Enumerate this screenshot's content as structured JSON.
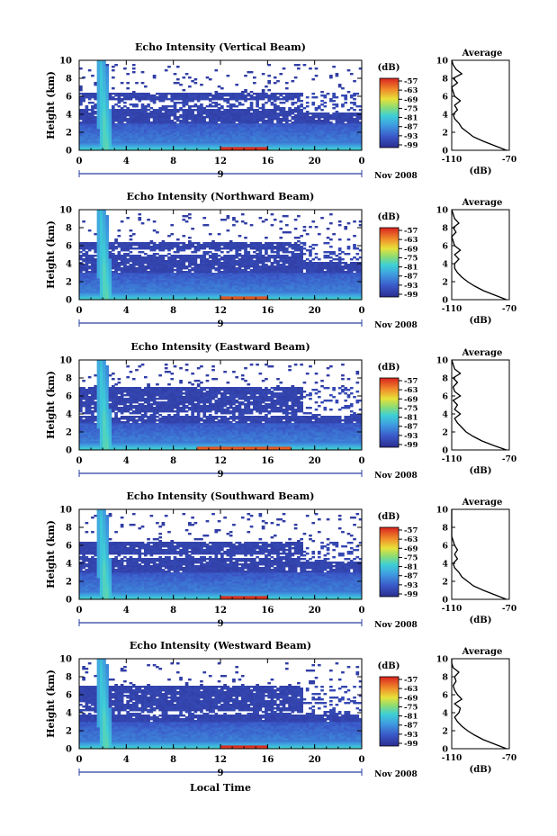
{
  "common": {
    "ylabel": "Height (km)",
    "colorbar_unit": "(dB)",
    "colorbar_ticks": [
      "-57",
      "-63",
      "-69",
      "-75",
      "-81",
      "-87",
      "-93",
      "-99"
    ],
    "x_ticks": [
      "0",
      "4",
      "8",
      "12",
      "16",
      "20",
      "0"
    ],
    "y_ticks": [
      "0",
      "2",
      "4",
      "6",
      "8",
      "10"
    ],
    "date_tick": "9",
    "month_year": "Nov 2008",
    "avg_title": "Average",
    "avg_xlabel": "(dB)",
    "avg_x_ticks": [
      "-110",
      "-70"
    ],
    "xlabel_bottom": "Local Time"
  },
  "chart_data": [
    {
      "type": "heatmap",
      "title": "Echo Intensity (Vertical Beam)",
      "xlabel": "",
      "ylabel": "Height (km)",
      "xlim": [
        0,
        24
      ],
      "ylim": [
        0,
        10
      ],
      "clim": [
        -102,
        -54
      ],
      "color_unit": "dB",
      "features": {
        "upper_cloud_top_km": 6.5,
        "upper_gap_km": [
          4.6,
          5.6
        ],
        "surface_peak_dB": -57,
        "surface_peak_hours": [
          12,
          16
        ],
        "fall_streak_hours": [
          1.5,
          3
        ]
      },
      "average_profile": {
        "height_km": [
          0,
          0.5,
          1,
          1.5,
          2,
          2.5,
          3,
          3.5,
          4,
          4.5,
          5,
          5.5,
          6,
          6.5,
          7,
          7.5,
          8,
          8.5,
          9,
          9.5,
          10
        ],
        "dB": [
          -72,
          -80,
          -88,
          -95,
          -99,
          -103,
          -105,
          -108,
          -109,
          -106,
          -108,
          -104,
          -108,
          -109,
          -110,
          -106,
          -109,
          -103,
          -107,
          -109,
          -110
        ]
      }
    },
    {
      "type": "heatmap",
      "title": "Echo Intensity (Northward Beam)",
      "xlabel": "",
      "ylabel": "Height (km)",
      "xlim": [
        0,
        24
      ],
      "ylim": [
        0,
        10
      ],
      "clim": [
        -102,
        -54
      ],
      "color_unit": "dB",
      "features": {
        "upper_cloud_top_km": 6.4,
        "upper_gap_km": [
          5.0,
          5.6
        ],
        "surface_peak_dB": -60,
        "surface_peak_hours": [
          12,
          16
        ],
        "fall_streak_hours": [
          1.5,
          3
        ]
      },
      "average_profile": {
        "height_km": [
          0,
          0.5,
          1,
          1.5,
          2,
          2.5,
          3,
          3.5,
          4,
          4.5,
          5,
          5.5,
          6,
          6.5,
          7,
          7.5,
          8,
          8.5,
          9,
          9.5,
          10
        ],
        "dB": [
          -72,
          -80,
          -88,
          -94,
          -99,
          -103,
          -106,
          -108,
          -108,
          -105,
          -108,
          -104,
          -108,
          -109,
          -110,
          -107,
          -109,
          -105,
          -108,
          -109,
          -110
        ]
      }
    },
    {
      "type": "heatmap",
      "title": "Echo Intensity (Eastward Beam)",
      "xlabel": "",
      "ylabel": "Height (km)",
      "xlim": [
        0,
        24
      ],
      "ylim": [
        0,
        10
      ],
      "clim": [
        -102,
        -54
      ],
      "color_unit": "dB",
      "features": {
        "upper_cloud_top_km": 7.0,
        "upper_gap_km": [
          3.9,
          4.3
        ],
        "surface_peak_dB": -60,
        "surface_peak_hours": [
          10,
          18
        ],
        "fall_streak_hours": [
          1.5,
          3
        ]
      },
      "average_profile": {
        "height_km": [
          0,
          0.5,
          1,
          1.5,
          2,
          2.5,
          3,
          3.5,
          4,
          4.5,
          5,
          5.5,
          6,
          6.5,
          7,
          7.5,
          8,
          8.5,
          9,
          9.5,
          10
        ],
        "dB": [
          -72,
          -81,
          -89,
          -95,
          -100,
          -103,
          -106,
          -108,
          -104,
          -108,
          -106,
          -109,
          -104,
          -108,
          -109,
          -106,
          -109,
          -104,
          -108,
          -109,
          -110
        ]
      }
    },
    {
      "type": "heatmap",
      "title": "Echo Intensity (Southward Beam)",
      "xlabel": "",
      "ylabel": "Height (km)",
      "xlim": [
        0,
        24
      ],
      "ylim": [
        0,
        10
      ],
      "clim": [
        -102,
        -54
      ],
      "color_unit": "dB",
      "features": {
        "upper_cloud_top_km": 6.5,
        "upper_gap_km": [
          4.5,
          5.0
        ],
        "surface_peak_dB": -57,
        "surface_peak_hours": [
          12,
          16
        ],
        "fall_streak_hours": [
          1.5,
          3
        ]
      },
      "average_profile": {
        "height_km": [
          0,
          0.5,
          1,
          1.5,
          2,
          2.5,
          3,
          3.5,
          4,
          4.5,
          5,
          5.5,
          6,
          6.5,
          7,
          7.5,
          8,
          8.5,
          9,
          9.5,
          10
        ],
        "dB": [
          -72,
          -80,
          -88,
          -95,
          -99,
          -103,
          -105,
          -108,
          -109,
          -106,
          -108,
          -106,
          -108,
          -109,
          -110,
          -110,
          -110,
          -110,
          -110,
          -110,
          -110
        ]
      }
    },
    {
      "type": "heatmap",
      "title": "Echo Intensity (Westward Beam)",
      "xlabel": "Local Time",
      "ylabel": "Height (km)",
      "xlim": [
        0,
        24
      ],
      "ylim": [
        0,
        10
      ],
      "clim": [
        -102,
        -54
      ],
      "color_unit": "dB",
      "features": {
        "upper_cloud_top_km": 7.0,
        "upper_gap_km": [
          3.9,
          4.3
        ],
        "surface_peak_dB": -57,
        "surface_peak_hours": [
          12,
          16
        ],
        "fall_streak_hours": [
          1.5,
          3
        ]
      },
      "average_profile": {
        "height_km": [
          0,
          0.5,
          1,
          1.5,
          2,
          2.5,
          3,
          3.5,
          4,
          4.5,
          5,
          5.5,
          6,
          6.5,
          7,
          7.5,
          8,
          8.5,
          9,
          9.5,
          10
        ],
        "dB": [
          -72,
          -80,
          -88,
          -94,
          -99,
          -103,
          -106,
          -108,
          -105,
          -104,
          -108,
          -103,
          -106,
          -108,
          -109,
          -107,
          -108,
          -105,
          -109,
          -110,
          -110
        ]
      }
    }
  ]
}
